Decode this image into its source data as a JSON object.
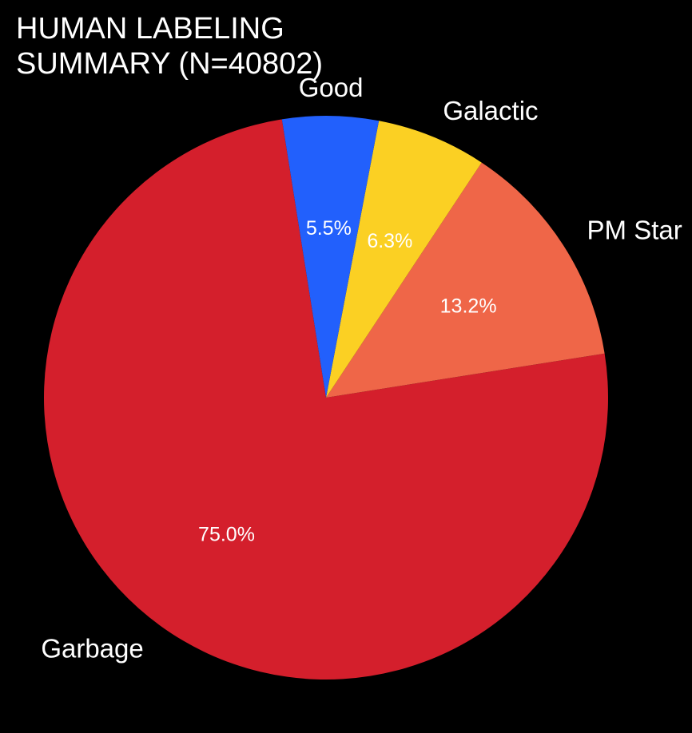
{
  "chart_data": {
    "type": "pie",
    "title_line1": "HUMAN LABELING",
    "title_line2": "SUMMARY (N=40802)",
    "slices": [
      {
        "label": "Garbage",
        "value": 75.0,
        "pct_label": "75.0%",
        "color": "#d41f2c"
      },
      {
        "label": "PM Star",
        "value": 13.2,
        "pct_label": "13.2%",
        "color": "#ef6648"
      },
      {
        "label": "Galactic",
        "value": 6.3,
        "pct_label": "6.3%",
        "color": "#fbd023"
      },
      {
        "label": "Good",
        "value": 5.5,
        "pct_label": "5.5%",
        "color": "#2260fc"
      }
    ],
    "background": "#000000"
  }
}
